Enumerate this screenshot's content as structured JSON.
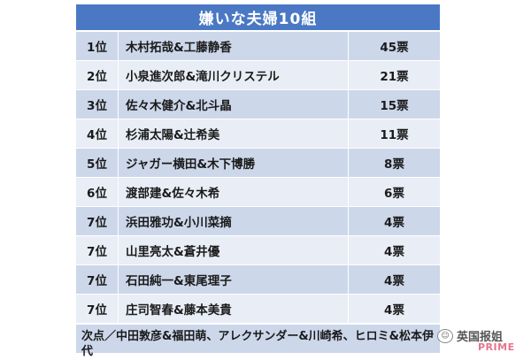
{
  "title": "嫌いな夫婦10組",
  "rows": [
    {
      "rank": "1位",
      "names": "木村拓哉&工藤静香",
      "votes": "45票"
    },
    {
      "rank": "2位",
      "names": "小泉進次郎&滝川クリステル",
      "votes": "21票"
    },
    {
      "rank": "3位",
      "names": "佐々木健介&北斗晶",
      "votes": "15票"
    },
    {
      "rank": "4位",
      "names": "杉浦太陽&辻希美",
      "votes": "11票"
    },
    {
      "rank": "5位",
      "names": "ジャガー横田&木下博勝",
      "votes": "8票"
    },
    {
      "rank": "6位",
      "names": "渡部建&佐々木希",
      "votes": "6票"
    },
    {
      "rank": "7位",
      "names": "浜田雅功&小川菜摘",
      "votes": "4票"
    },
    {
      "rank": "7位",
      "names": "山里亮太&蒼井優",
      "votes": "4票"
    },
    {
      "rank": "7位",
      "names": "石田純一&東尾理子",
      "votes": "4票"
    },
    {
      "rank": "7位",
      "names": "庄司智春&藤本美貴",
      "votes": "4票"
    }
  ],
  "footnote": "次点／中田敦彦&福田萌、アレクサンダー&川崎希、ヒロミ&松本伊代",
  "watermark": {
    "icon": "wechat-icon",
    "text": "英国报姐",
    "logo": "PRIME"
  }
}
